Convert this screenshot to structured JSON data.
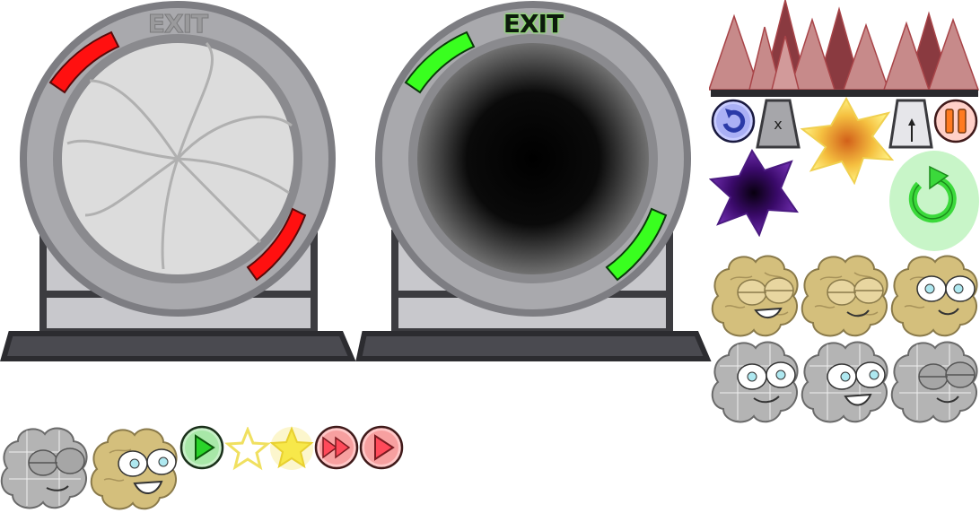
{
  "portals": {
    "closed": {
      "label": "EXIT",
      "label_color": "#9a9a9c",
      "light_color": "#ff1010"
    },
    "open": {
      "label": "EXIT",
      "label_color": "#0d1a0d",
      "label_glow": "#7cff4a",
      "light_color": "#39ff1f"
    }
  },
  "colors": {
    "ring": "#a9a9ad",
    "ring_dark": "#7d7d82",
    "stand": "#3c3c40",
    "stand_fill": "#c8c8cc",
    "brain_tan": "#d4bf7c",
    "brain_gray": "#b4b4b4",
    "spike": "#c78a8a",
    "spike_dark": "#8a3a40",
    "restart_green": "#3bd93b",
    "star_yellow": "#f7e84a"
  },
  "icons": [
    "brain-character-icon",
    "play-icon",
    "star-outline-icon",
    "star-filled-icon",
    "fast-forward-icon",
    "restart-icon",
    "pause-icon",
    "spike-trap-icon",
    "vortex-icon"
  ]
}
